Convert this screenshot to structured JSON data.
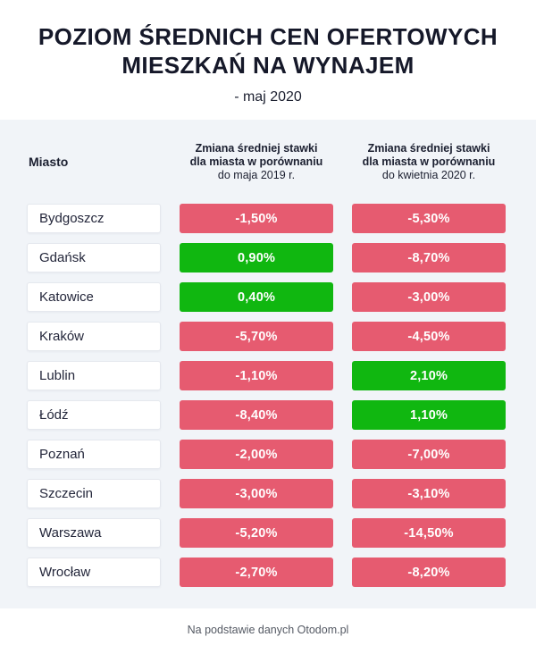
{
  "header": {
    "title_line1": "POZIOM ŚREDNICH CEN OFERTOWYCH",
    "title_line2": "MIESZKAŃ NA WYNAJEM",
    "subtitle": "- maj 2020"
  },
  "table": {
    "col_city": "Miasto",
    "col_yoy": {
      "line1": "Zmiana średniej stawki",
      "line2": "dla miasta w porównaniu",
      "line3": "do maja 2019 r."
    },
    "col_mom": {
      "line1": "Zmiana średniej stawki",
      "line2": "dla miasta w porównaniu",
      "line3": "do kwietnia 2020 r."
    },
    "rows": [
      {
        "city": "Bydgoszcz",
        "yoy": "-1,50%",
        "yoy_color": "red",
        "mom": "-5,30%",
        "mom_color": "red"
      },
      {
        "city": "Gdańsk",
        "yoy": "0,90%",
        "yoy_color": "green",
        "mom": "-8,70%",
        "mom_color": "red"
      },
      {
        "city": "Katowice",
        "yoy": "0,40%",
        "yoy_color": "green",
        "mom": "-3,00%",
        "mom_color": "red"
      },
      {
        "city": "Kraków",
        "yoy": "-5,70%",
        "yoy_color": "red",
        "mom": "-4,50%",
        "mom_color": "red"
      },
      {
        "city": "Lublin",
        "yoy": "-1,10%",
        "yoy_color": "red",
        "mom": "2,10%",
        "mom_color": "green"
      },
      {
        "city": "Łódź",
        "yoy": "-8,40%",
        "yoy_color": "red",
        "mom": "1,10%",
        "mom_color": "green"
      },
      {
        "city": "Poznań",
        "yoy": "-2,00%",
        "yoy_color": "red",
        "mom": "-7,00%",
        "mom_color": "red"
      },
      {
        "city": "Szczecin",
        "yoy": "-3,00%",
        "yoy_color": "red",
        "mom": "-3,10%",
        "mom_color": "red"
      },
      {
        "city": "Warszawa",
        "yoy": "-5,20%",
        "yoy_color": "red",
        "mom": "-14,50%",
        "mom_color": "red"
      },
      {
        "city": "Wrocław",
        "yoy": "-2,70%",
        "yoy_color": "red",
        "mom": "-8,20%",
        "mom_color": "red"
      }
    ]
  },
  "footer": {
    "text": "Na podstawie danych Otodom.pl"
  },
  "colors": {
    "red": "#e65b70",
    "green": "#10b710",
    "section_bg": "#f1f4f8",
    "title": "#151829"
  },
  "chart_data": {
    "type": "table",
    "title": "Poziom średnich cen ofertowych mieszkań na wynajem - maj 2020",
    "columns": [
      "Miasto",
      "Zmiana średniej stawki dla miasta w porównaniu do maja 2019 r. (%)",
      "Zmiana średniej stawki dla miasta w porównaniu do kwietnia 2020 r. (%)"
    ],
    "rows": [
      [
        "Bydgoszcz",
        -1.5,
        -5.3
      ],
      [
        "Gdańsk",
        0.9,
        -8.7
      ],
      [
        "Katowice",
        0.4,
        -3.0
      ],
      [
        "Kraków",
        -5.7,
        -4.5
      ],
      [
        "Lublin",
        -1.1,
        2.1
      ],
      [
        "Łódź",
        -8.4,
        1.1
      ],
      [
        "Poznań",
        -2.0,
        -7.0
      ],
      [
        "Szczecin",
        -3.0,
        -3.1
      ],
      [
        "Warszawa",
        -5.2,
        -14.5
      ],
      [
        "Wrocław",
        -2.7,
        -8.2
      ]
    ],
    "units": "%",
    "legend": "green pill = positive change, red pill = negative change",
    "source": "Na podstawie danych Otodom.pl"
  }
}
